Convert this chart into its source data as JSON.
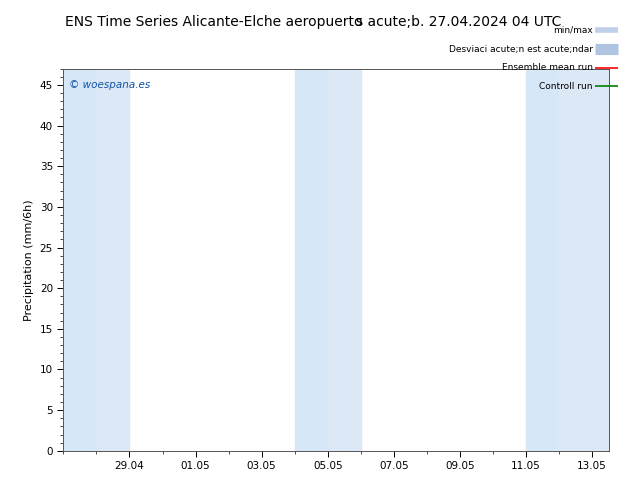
{
  "title_left": "ENS Time Series Alicante-Elche aeropuerto",
  "title_right": "s acute;b. 27.04.2024 04 UTC",
  "ylabel": "Precipitation (mm/6h)",
  "ylim": [
    0,
    47
  ],
  "yticks": [
    0,
    5,
    10,
    15,
    20,
    25,
    30,
    35,
    40,
    45
  ],
  "background_color": "#ffffff",
  "plot_bg_color": "#ffffff",
  "watermark": "© woespana.es",
  "shade_color": "#dce8f5",
  "x_tick_labels": [
    "29.04",
    "01.05",
    "03.05",
    "05.05",
    "07.05",
    "09.05",
    "11.05",
    "13.05"
  ],
  "num_days": 16.5,
  "title_fontsize": 10,
  "axis_fontsize": 8,
  "tick_fontsize": 7.5,
  "legend_labels": [
    "min/max",
    "Desviaci acute;n est acute;ndar",
    "Ensemble mean run",
    "Controll run"
  ],
  "legend_colors_line": [
    "#b8cfe8",
    "#c8d8ec",
    "red",
    "green"
  ],
  "legend_lw": [
    6,
    10,
    1.2,
    1.2
  ]
}
